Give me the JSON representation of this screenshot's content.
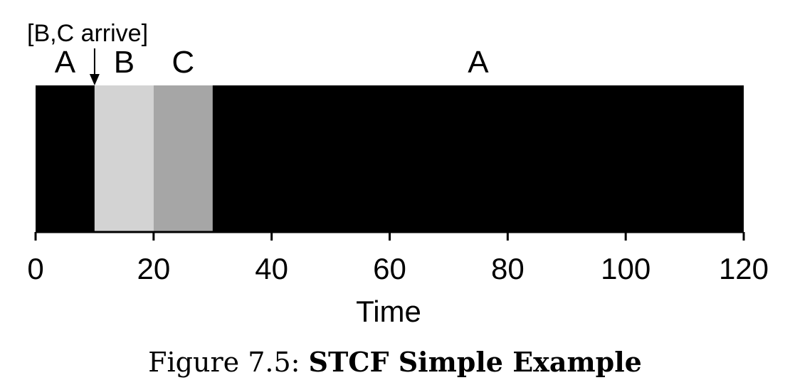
{
  "chart_data": {
    "type": "bar",
    "xlabel": "Time",
    "ylabel": "",
    "xlim": [
      0,
      120
    ],
    "xticks": [
      "0",
      "20",
      "40",
      "60",
      "80",
      "100",
      "120"
    ],
    "segments": [
      {
        "label": "A",
        "start": 0,
        "end": 10,
        "color": "#000000"
      },
      {
        "label": "B",
        "start": 10,
        "end": 20,
        "color": "#d3d3d3"
      },
      {
        "label": "C",
        "start": 20,
        "end": 30,
        "color": "#a6a6a6"
      },
      {
        "label": "A",
        "start": 30,
        "end": 120,
        "color": "#000000"
      }
    ],
    "annotations": [
      {
        "text": "[B,C arrive]",
        "x": 10
      }
    ]
  },
  "caption": {
    "prefix": "Figure 7.5:",
    "title": "STCF Simple Example"
  }
}
